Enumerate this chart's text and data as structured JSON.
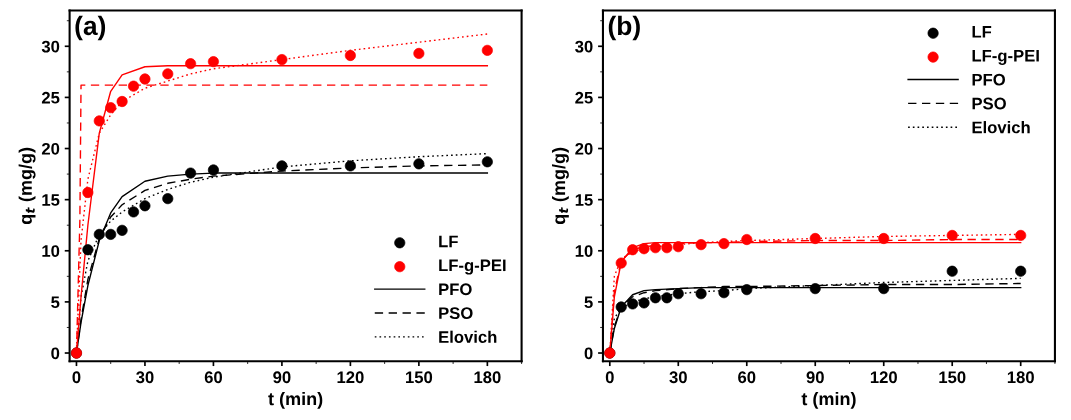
{
  "chart_data": [
    {
      "type": "scatter",
      "xlabel": "t (min)",
      "ylabel": "q$_{t}$ (mg/g)",
      "annotations": [
        "(a)"
      ],
      "xlim": [
        -3,
        195
      ],
      "ylim": [
        -0.8,
        33.5
      ],
      "xticks": [
        0,
        30,
        60,
        90,
        120,
        150,
        180
      ],
      "yticks": [
        0,
        5,
        10,
        15,
        20,
        25,
        30
      ],
      "legend": "lower right",
      "grid": false,
      "x": [
        0,
        5,
        10,
        15,
        20,
        25,
        30,
        40,
        50,
        60,
        90,
        120,
        150,
        180
      ],
      "series": [
        {
          "name": "LF",
          "color": "#000000",
          "marker": "circle",
          "values": [
            0,
            10.1,
            11.6,
            11.6,
            12.0,
            13.8,
            14.4,
            15.1,
            17.6,
            17.9,
            18.3,
            18.3,
            18.5,
            18.7
          ]
        },
        {
          "name": "LF-g-PEI",
          "color": "#ff0000",
          "marker": "circle",
          "values": [
            0,
            15.7,
            22.7,
            24.0,
            24.6,
            26.1,
            26.8,
            27.3,
            28.3,
            28.5,
            28.7,
            29.1,
            29.3,
            29.6
          ]
        },
        {
          "name": "PFO",
          "type": "line",
          "line_style": "solid",
          "color": "#000000",
          "x": [
            0,
            2,
            5,
            10,
            15,
            20,
            30,
            40,
            50,
            60,
            90,
            120,
            150,
            180
          ],
          "values": [
            0,
            3.0,
            6.6,
            11.0,
            13.7,
            15.3,
            16.8,
            17.3,
            17.5,
            17.6,
            17.6,
            17.6,
            17.6,
            17.6
          ]
        },
        {
          "name": "PSO",
          "type": "line",
          "line_style": "dashed",
          "color": "#000000",
          "x": [
            0,
            2,
            5,
            10,
            15,
            20,
            30,
            40,
            50,
            60,
            90,
            120,
            150,
            180
          ],
          "values": [
            0,
            3.3,
            7.2,
            11.2,
            13.3,
            14.5,
            15.9,
            16.6,
            17.0,
            17.3,
            17.8,
            18.1,
            18.3,
            18.4
          ]
        },
        {
          "name": "Elovich",
          "type": "line",
          "line_style": "dotted",
          "color": "#000000",
          "x": [
            0,
            2,
            5,
            10,
            15,
            20,
            30,
            40,
            50,
            60,
            90,
            120,
            150,
            180
          ],
          "values": [
            0,
            5.5,
            9.0,
            11.6,
            12.9,
            13.8,
            15.1,
            16.0,
            16.7,
            17.2,
            18.2,
            18.8,
            19.2,
            19.5
          ]
        },
        {
          "type": "line",
          "line_style": "solid",
          "color": "#ff0000",
          "x": [
            0,
            2,
            5,
            10,
            15,
            20,
            30,
            40,
            50,
            60,
            90,
            120,
            150,
            180
          ],
          "values": [
            0,
            5.5,
            12.5,
            21.5,
            25.6,
            27.2,
            28.0,
            28.1,
            28.1,
            28.1,
            28.1,
            28.1,
            28.1,
            28.1
          ]
        },
        {
          "type": "line",
          "line_style": "dashed",
          "color": "#ff0000",
          "x": [
            0,
            1.5,
            2,
            180
          ],
          "values": [
            0,
            13,
            26.2,
            26.2
          ]
        },
        {
          "type": "line",
          "line_style": "dotted",
          "color": "#ff0000",
          "x": [
            0,
            2,
            5,
            10,
            15,
            20,
            30,
            40,
            50,
            60,
            90,
            120,
            150,
            180
          ],
          "values": [
            0,
            11,
            17,
            21.5,
            23.3,
            24.6,
            25.9,
            26.6,
            27.3,
            27.8,
            28.7,
            29.6,
            30.4,
            31.2
          ]
        }
      ]
    },
    {
      "type": "scatter",
      "xlabel": "t (min)",
      "ylabel": "q$_{t}$ (mg/g)",
      "annotations": [
        "(b)"
      ],
      "xlim": [
        -3,
        195
      ],
      "ylim": [
        -0.8,
        33.5
      ],
      "xticks": [
        0,
        30,
        60,
        90,
        120,
        150,
        180
      ],
      "yticks": [
        0,
        5,
        10,
        15,
        20,
        25,
        30
      ],
      "legend": "upper right",
      "grid": false,
      "x": [
        0,
        5,
        10,
        15,
        20,
        25,
        30,
        40,
        50,
        60,
        90,
        120,
        150,
        180
      ],
      "series": [
        {
          "name": "LF",
          "color": "#000000",
          "marker": "circle",
          "values": [
            0,
            4.5,
            4.8,
            4.9,
            5.4,
            5.4,
            5.8,
            5.8,
            5.9,
            6.2,
            6.3,
            6.3,
            8.0,
            8.0
          ]
        },
        {
          "name": "LF-g-PEI",
          "color": "#ff0000",
          "marker": "circle",
          "values": [
            0,
            8.8,
            10.1,
            10.2,
            10.3,
            10.3,
            10.4,
            10.6,
            10.7,
            11.1,
            11.2,
            11.2,
            11.5,
            11.5
          ]
        },
        {
          "name": "PFO",
          "type": "line",
          "line_style": "solid",
          "color": "#000000",
          "x": [
            0,
            2,
            5,
            10,
            15,
            20,
            30,
            40,
            50,
            60,
            90,
            120,
            150,
            180
          ],
          "values": [
            0,
            2.4,
            4.5,
            5.7,
            6.1,
            6.2,
            6.3,
            6.4,
            6.4,
            6.4,
            6.4,
            6.4,
            6.4,
            6.4
          ]
        },
        {
          "name": "PSO",
          "type": "line",
          "line_style": "dashed",
          "color": "#000000",
          "x": [
            0,
            2,
            5,
            10,
            15,
            20,
            30,
            40,
            50,
            60,
            90,
            120,
            150,
            180
          ],
          "values": [
            0,
            2.6,
            4.5,
            5.5,
            5.9,
            6.1,
            6.3,
            6.4,
            6.5,
            6.5,
            6.6,
            6.7,
            6.7,
            6.8
          ]
        },
        {
          "name": "Elovich",
          "type": "line",
          "line_style": "dotted",
          "color": "#000000",
          "x": [
            0,
            2,
            5,
            10,
            15,
            20,
            30,
            40,
            50,
            60,
            90,
            120,
            150,
            180
          ],
          "values": [
            0,
            3.4,
            4.4,
            5.0,
            5.3,
            5.5,
            5.8,
            6.0,
            6.1,
            6.3,
            6.6,
            6.9,
            7.1,
            7.3
          ]
        },
        {
          "type": "line",
          "line_style": "solid",
          "color": "#ff0000",
          "x": [
            0,
            2,
            5,
            10,
            15,
            20,
            30,
            40,
            50,
            60,
            90,
            120,
            150,
            180
          ],
          "values": [
            0,
            5.5,
            8.9,
            10.3,
            10.7,
            10.8,
            10.8,
            10.8,
            10.8,
            10.8,
            10.8,
            10.8,
            10.8,
            10.8
          ]
        },
        {
          "type": "line",
          "line_style": "dashed",
          "color": "#ff0000",
          "x": [
            0,
            2,
            5,
            10,
            15,
            20,
            30,
            40,
            50,
            60,
            90,
            120,
            150,
            180
          ],
          "values": [
            0,
            6.0,
            9.0,
            10.1,
            10.4,
            10.5,
            10.7,
            10.8,
            10.8,
            10.9,
            11.0,
            11.0,
            11.1,
            11.1
          ]
        },
        {
          "type": "line",
          "line_style": "dotted",
          "color": "#ff0000",
          "x": [
            0,
            2,
            5,
            10,
            15,
            20,
            30,
            40,
            50,
            60,
            90,
            120,
            150,
            180
          ],
          "values": [
            0,
            7.5,
            9.2,
            9.9,
            10.2,
            10.4,
            10.6,
            10.8,
            10.9,
            11.0,
            11.2,
            11.4,
            11.5,
            11.6
          ]
        }
      ]
    }
  ]
}
